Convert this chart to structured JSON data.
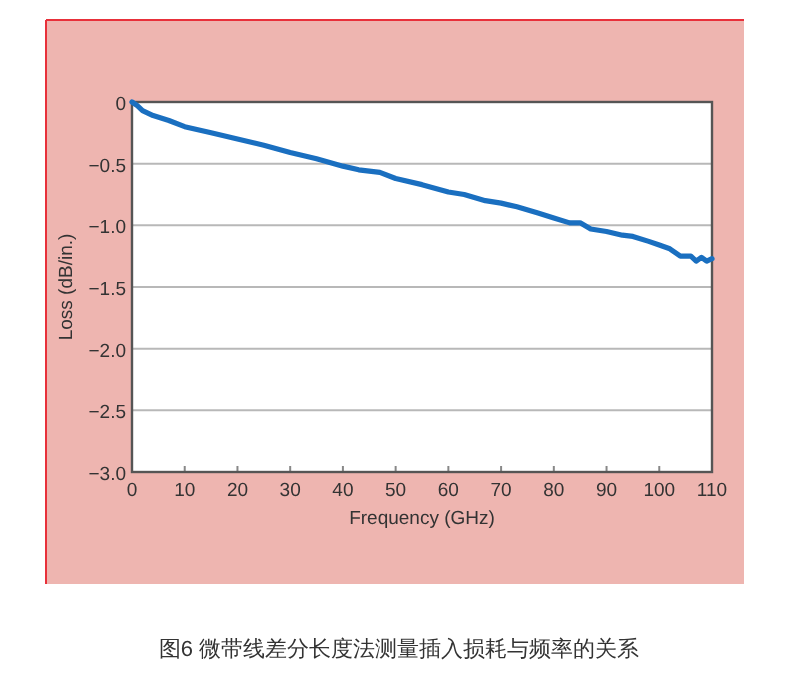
{
  "chart_data": {
    "type": "line",
    "xlabel": "Frequency (GHz)",
    "ylabel": "Loss (dB/in.)",
    "annotations": [
      "图6 微带线差分长度法测量插入损耗与频率的关系"
    ],
    "xlim": [
      0,
      110
    ],
    "xticks": [
      0,
      10,
      20,
      30,
      40,
      50,
      60,
      70,
      80,
      90,
      100,
      110
    ],
    "ylim": [
      -3.0,
      0
    ],
    "yticks": [
      {
        "value": -3.0,
        "label": "−3.0"
      },
      {
        "value": -2.5,
        "label": "−2.5"
      },
      {
        "value": -2.0,
        "label": "−2.0"
      },
      {
        "value": -1.5,
        "label": "−1.5"
      },
      {
        "value": -1.0,
        "label": "−1.0"
      },
      {
        "value": -0.5,
        "label": "−0.5"
      },
      {
        "value": 0,
        "label": "0"
      }
    ],
    "grid": "y",
    "marker": "none",
    "line_style": "solid",
    "series": [
      {
        "color": "#1a6fc0",
        "x": [
          0,
          1,
          2,
          4,
          7,
          10,
          15,
          20,
          25,
          30,
          35,
          40,
          43,
          47,
          50,
          55,
          60,
          63,
          67,
          70,
          73,
          77,
          80,
          83,
          85,
          87,
          90,
          93,
          95,
          98,
          100,
          102,
          104,
          106,
          107,
          108,
          109,
          110
        ],
        "values": [
          0,
          -0.03,
          -0.07,
          -0.11,
          -0.15,
          -0.2,
          -0.25,
          -0.3,
          -0.35,
          -0.41,
          -0.46,
          -0.52,
          -0.55,
          -0.57,
          -0.62,
          -0.67,
          -0.73,
          -0.75,
          -0.8,
          -0.82,
          -0.85,
          -0.9,
          -0.94,
          -0.98,
          -0.98,
          -1.03,
          -1.05,
          -1.08,
          -1.09,
          -1.13,
          -1.16,
          -1.19,
          -1.25,
          -1.25,
          -1.29,
          -1.26,
          -1.29,
          -1.27
        ]
      }
    ]
  }
}
